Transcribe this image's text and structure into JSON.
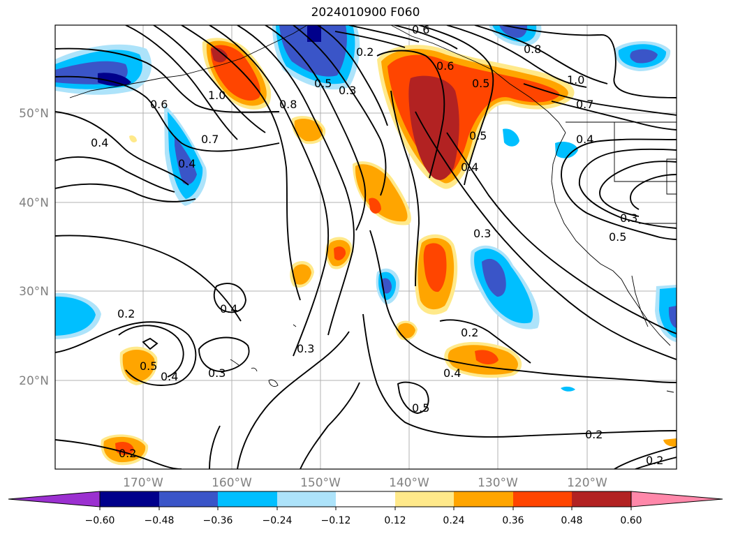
{
  "title": "2024010900 F060",
  "map": {
    "lat_labels": [
      "50°N",
      "40°N",
      "30°N",
      "20°N"
    ],
    "lon_labels": [
      "170°W",
      "160°W",
      "150°W",
      "140°W",
      "130°W",
      "120°W"
    ],
    "contour_labels": [
      "0.2",
      "0.3",
      "0.5",
      "0.6",
      "0.8",
      "1.0",
      "0.6",
      "0.4",
      "0.7",
      "0.4",
      "0.5",
      "0.4",
      "1.0",
      "0.7",
      "0.4",
      "0.3",
      "0.5",
      "0.3",
      "0.2",
      "0.4",
      "0.2",
      "0.5",
      "0.4",
      "0.3",
      "0.3",
      "0.5",
      "0.4",
      "0.2",
      "0.2",
      "0.2",
      "0.8",
      "0.6",
      "0.5"
    ]
  },
  "colorbar": {
    "ticks": [
      "−0.60",
      "−0.48",
      "−0.36",
      "−0.24",
      "−0.12",
      "0.12",
      "0.24",
      "0.36",
      "0.48",
      "0.60"
    ],
    "colors": [
      "#9b30d0",
      "#00008b",
      "#3a55c8",
      "#00bfff",
      "#ade3fa",
      "#ffffff",
      "#ffe98a",
      "#ffa500",
      "#ff4500",
      "#b22222",
      "#ff88aa"
    ]
  }
}
